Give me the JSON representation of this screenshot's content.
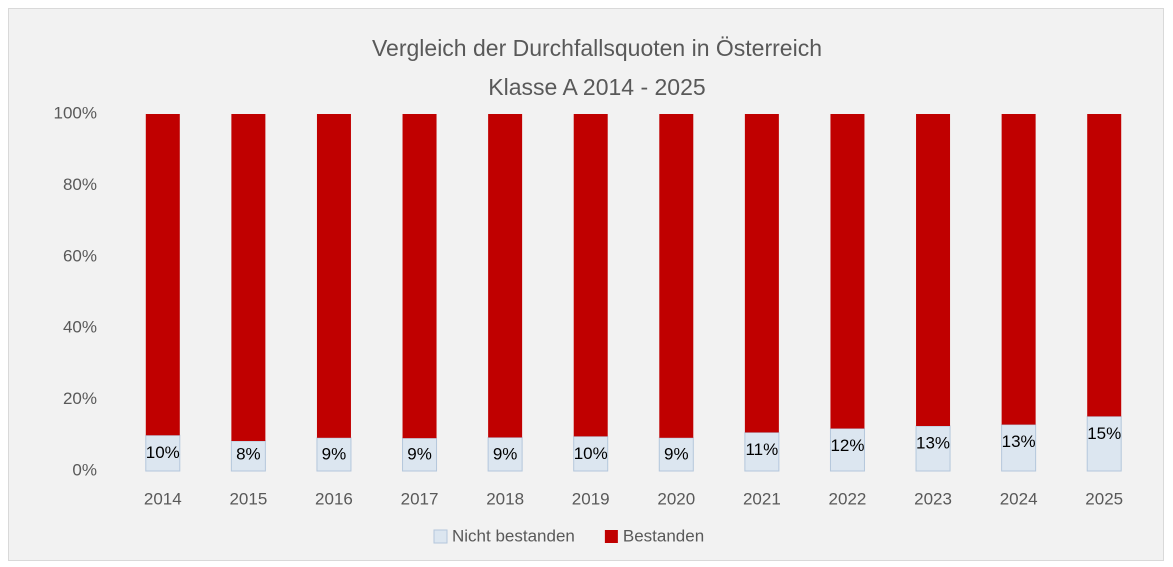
{
  "chart_data": {
    "type": "stacked_bar",
    "title": "Vergleich der Durchfallsquoten in Österreich",
    "subtitle": "Klasse A 2014 - 2025",
    "categories": [
      "2014",
      "2015",
      "2016",
      "2017",
      "2018",
      "2019",
      "2020",
      "2021",
      "2022",
      "2023",
      "2024",
      "2025"
    ],
    "series": [
      {
        "name": "Nicht bestanden",
        "color": "#dce6f0",
        "values": [
          10,
          8.4,
          9.3,
          9.2,
          9.4,
          9.7,
          9.3,
          10.8,
          11.9,
          12.6,
          13.0,
          15.3
        ],
        "value_labels": [
          "10%",
          "8%",
          "9%",
          "9%",
          "9%",
          "10%",
          "9%",
          "11%",
          "12%",
          "13%",
          "13%",
          "15%"
        ]
      },
      {
        "name": "Bestanden",
        "color": "#c00000",
        "values": [
          90,
          91.6,
          90.7,
          90.8,
          90.6,
          90.3,
          90.7,
          89.2,
          88.1,
          87.4,
          87.0,
          84.7
        ]
      }
    ],
    "ylim": [
      0,
      100
    ],
    "yticks": [
      {
        "value": 0,
        "label": "0%"
      },
      {
        "value": 20,
        "label": "20%"
      },
      {
        "value": 40,
        "label": "40%"
      },
      {
        "value": 60,
        "label": "60%"
      },
      {
        "value": 80,
        "label": "80%"
      },
      {
        "value": 100,
        "label": "100%"
      }
    ],
    "grid": false,
    "legend": "bottom"
  }
}
